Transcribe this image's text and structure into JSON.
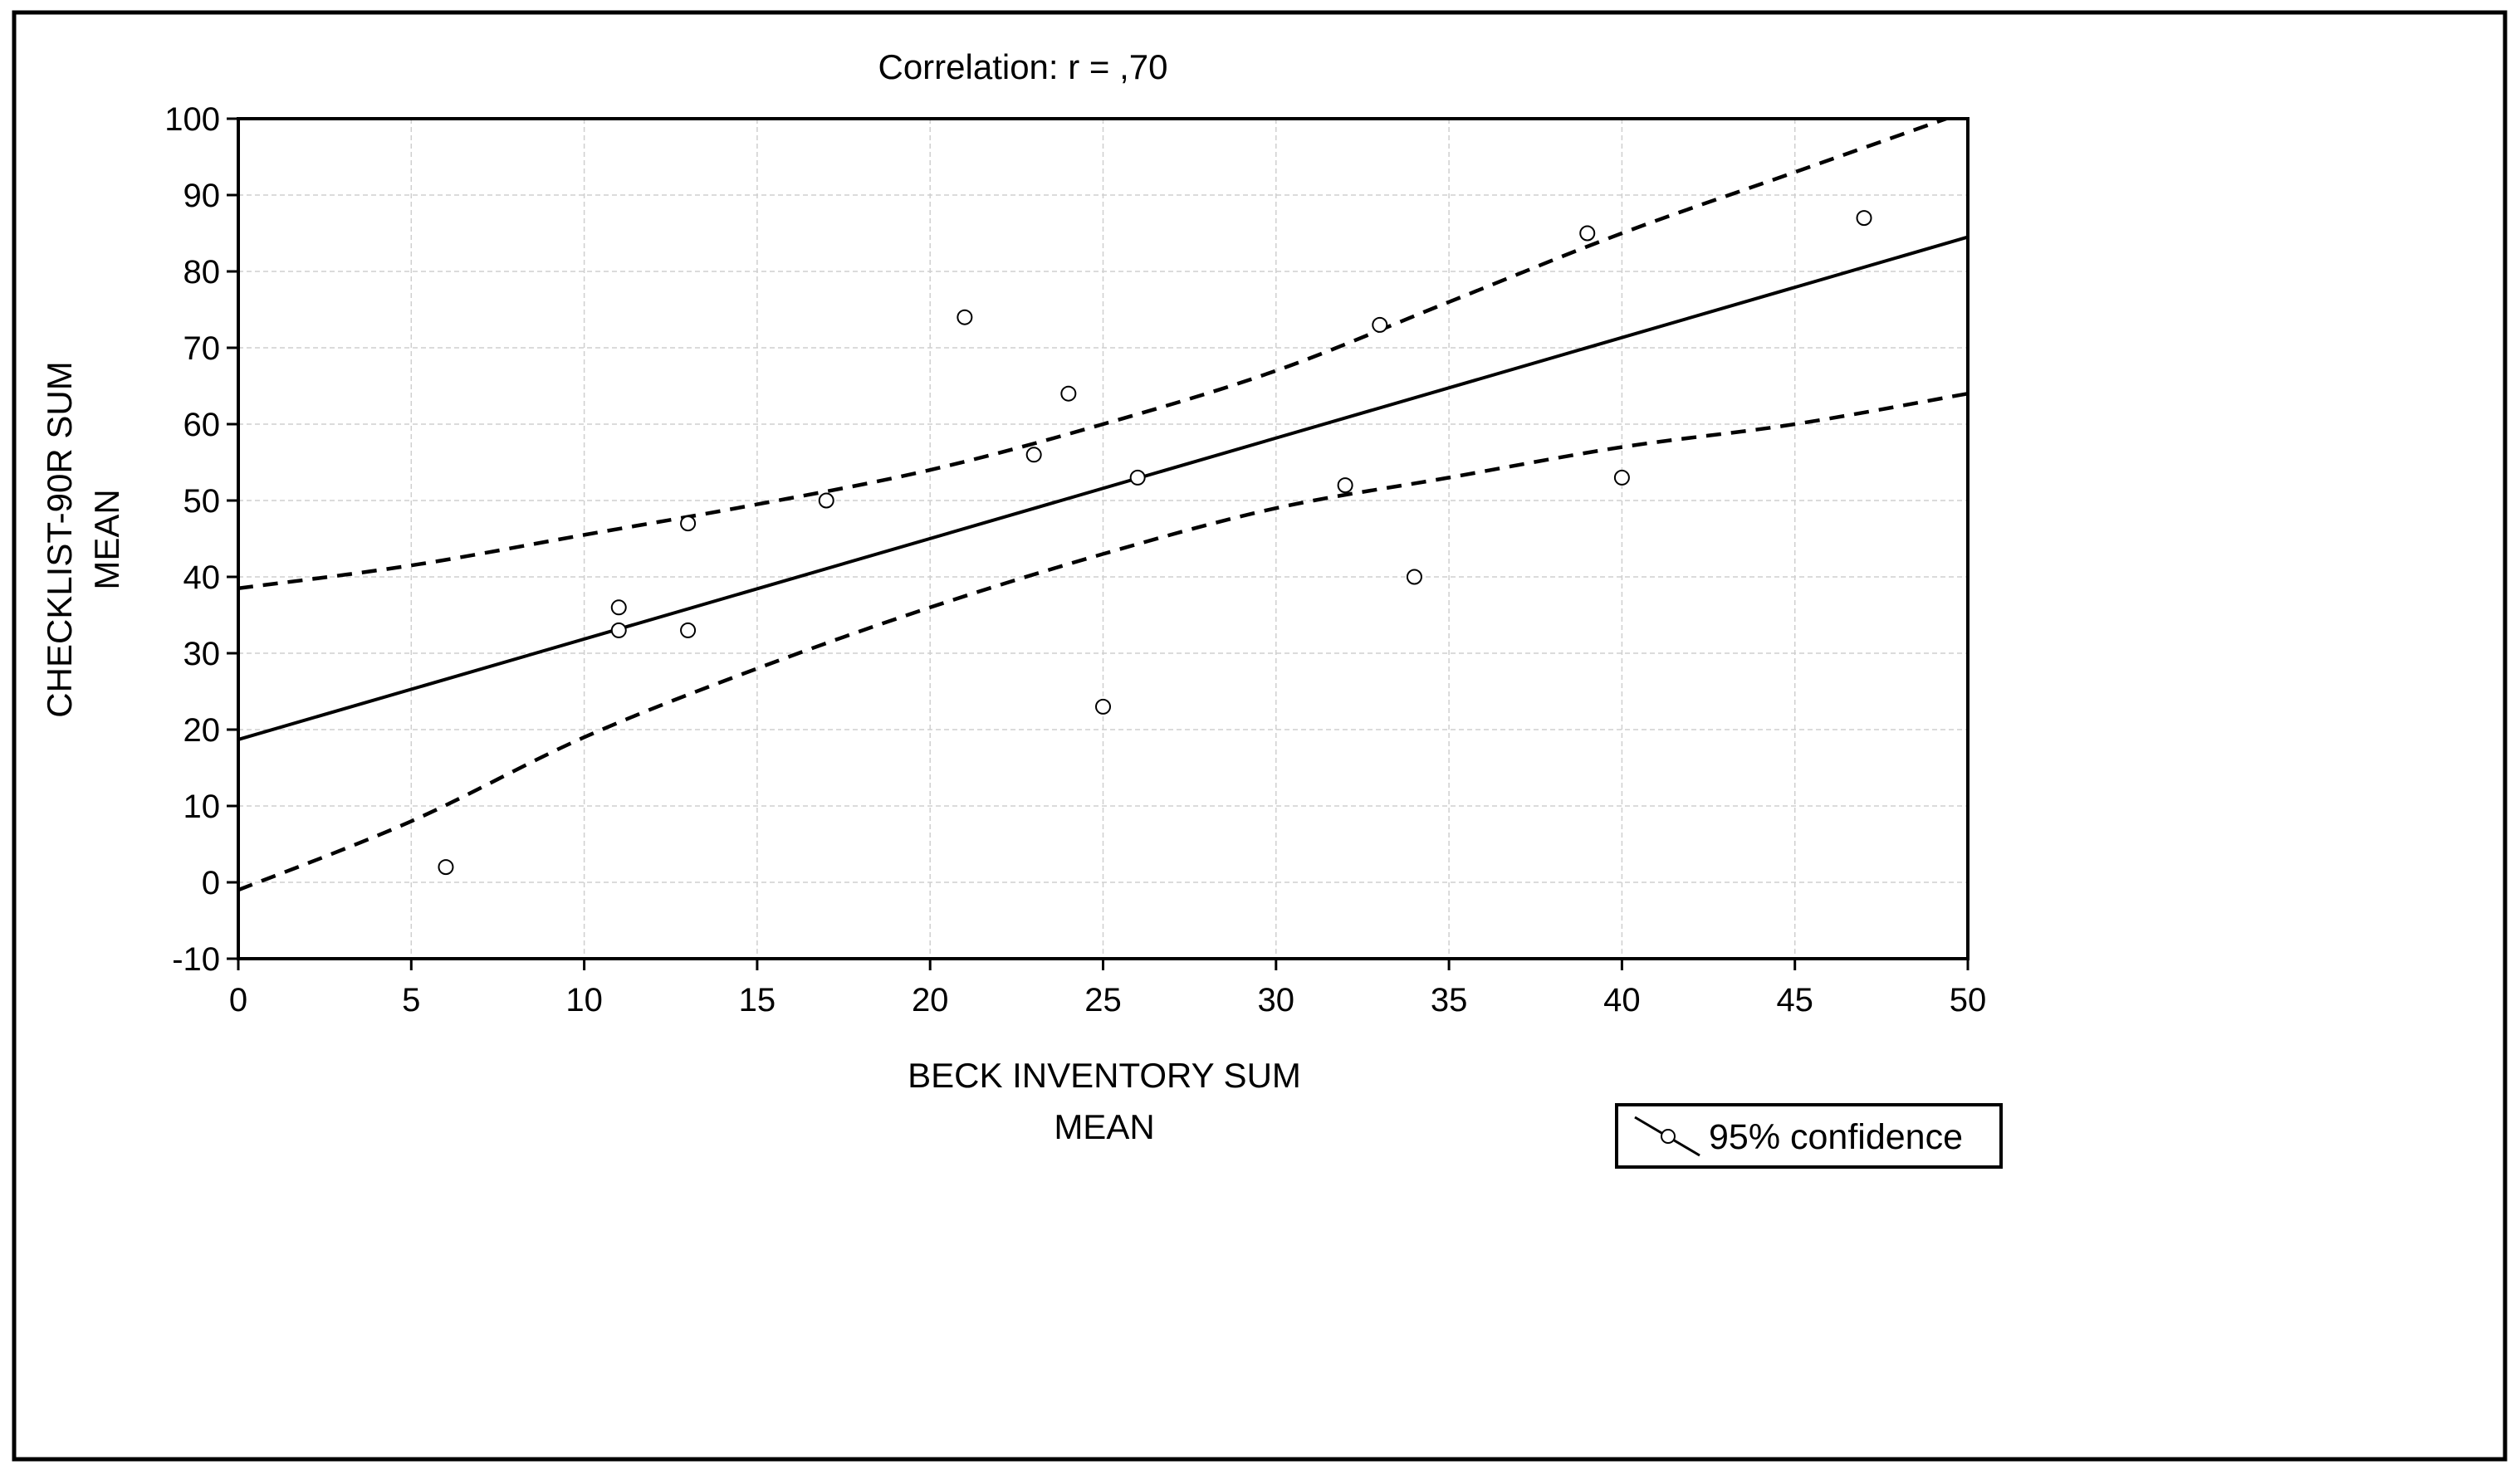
{
  "chart_data": {
    "type": "scatter",
    "title": "Correlation: r = ,70",
    "xlabel": [
      "BECK INVENTORY SUM",
      "MEAN"
    ],
    "ylabel": [
      "CHECKLIST-90R SUM",
      "MEAN"
    ],
    "xlim": [
      0,
      50
    ],
    "ylim": [
      -10,
      100
    ],
    "x_ticks": [
      0,
      5,
      10,
      15,
      20,
      25,
      30,
      35,
      40,
      45,
      50
    ],
    "y_ticks": [
      -10,
      0,
      10,
      20,
      30,
      40,
      50,
      60,
      70,
      80,
      90,
      100
    ],
    "grid": true,
    "legend": {
      "position": "bottom-right",
      "label": "95% confidence"
    },
    "points": [
      {
        "x": 6,
        "y": 2
      },
      {
        "x": 11,
        "y": 36
      },
      {
        "x": 11,
        "y": 33
      },
      {
        "x": 13,
        "y": 47
      },
      {
        "x": 13,
        "y": 33
      },
      {
        "x": 17,
        "y": 50
      },
      {
        "x": 21,
        "y": 74
      },
      {
        "x": 23,
        "y": 56
      },
      {
        "x": 24,
        "y": 64
      },
      {
        "x": 25,
        "y": 23
      },
      {
        "x": 26,
        "y": 53
      },
      {
        "x": 32,
        "y": 52
      },
      {
        "x": 33,
        "y": 73
      },
      {
        "x": 34,
        "y": 40
      },
      {
        "x": 39,
        "y": 85
      },
      {
        "x": 40,
        "y": 53
      },
      {
        "x": 47,
        "y": 87
      }
    ],
    "regression": {
      "x": [
        0,
        50
      ],
      "y": [
        18.7,
        84.5
      ]
    },
    "ci_upper": {
      "x": [
        0,
        5,
        10,
        15,
        20,
        25,
        30,
        35,
        40,
        45,
        50
      ],
      "y": [
        38.5,
        41.5,
        45.5,
        49.5,
        54,
        60,
        67,
        76,
        85,
        93,
        101
      ]
    },
    "ci_lower": {
      "x": [
        0,
        5,
        10,
        15,
        20,
        25,
        30,
        35,
        40,
        45,
        50
      ],
      "y": [
        -1,
        8,
        19,
        28,
        36,
        43,
        49,
        53,
        57,
        60,
        64
      ]
    }
  }
}
